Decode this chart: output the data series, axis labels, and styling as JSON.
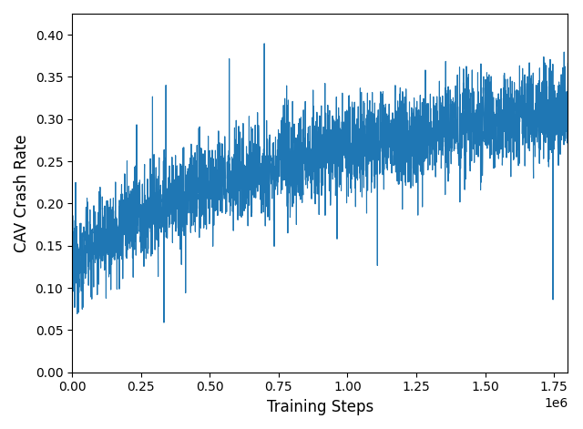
{
  "title": "",
  "xlabel": "Training Steps",
  "ylabel": "CAV Crash Rate",
  "xlim": [
    0,
    1800000
  ],
  "ylim": [
    0.0,
    0.425
  ],
  "yticks": [
    0.0,
    0.05,
    0.1,
    0.15,
    0.2,
    0.25,
    0.3,
    0.35,
    0.4
  ],
  "xticks": [
    0,
    250000,
    500000,
    750000,
    1000000,
    1250000,
    1500000,
    1750000
  ],
  "xtick_labels": [
    "0.00",
    "0.25",
    "0.50",
    "0.75",
    "1.00",
    "1.25",
    "1.50",
    "1.75"
  ],
  "offset_label": "1e6",
  "line_color": "#1f77b4",
  "line_width": 0.8,
  "figsize": [
    6.4,
    4.71
  ],
  "dpi": 100,
  "seed": 12345,
  "n_points": 3000,
  "trend_start": 0.13,
  "trend_end": 0.31,
  "noise_base": 0.028,
  "spike_prob": 0.015,
  "spike_amp": 0.07
}
